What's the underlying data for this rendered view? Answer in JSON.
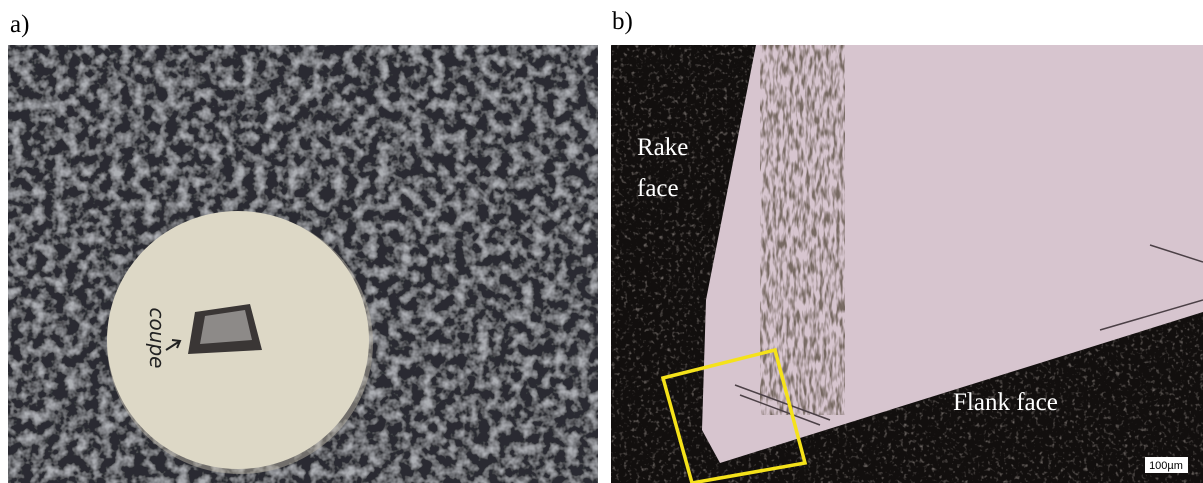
{
  "panels": [
    {
      "label": "a)",
      "annotation": "coupe"
    },
    {
      "label": "b)",
      "annotations": [
        "Rake",
        "face",
        "Flank face"
      ],
      "scale_bar": "100µm"
    }
  ]
}
